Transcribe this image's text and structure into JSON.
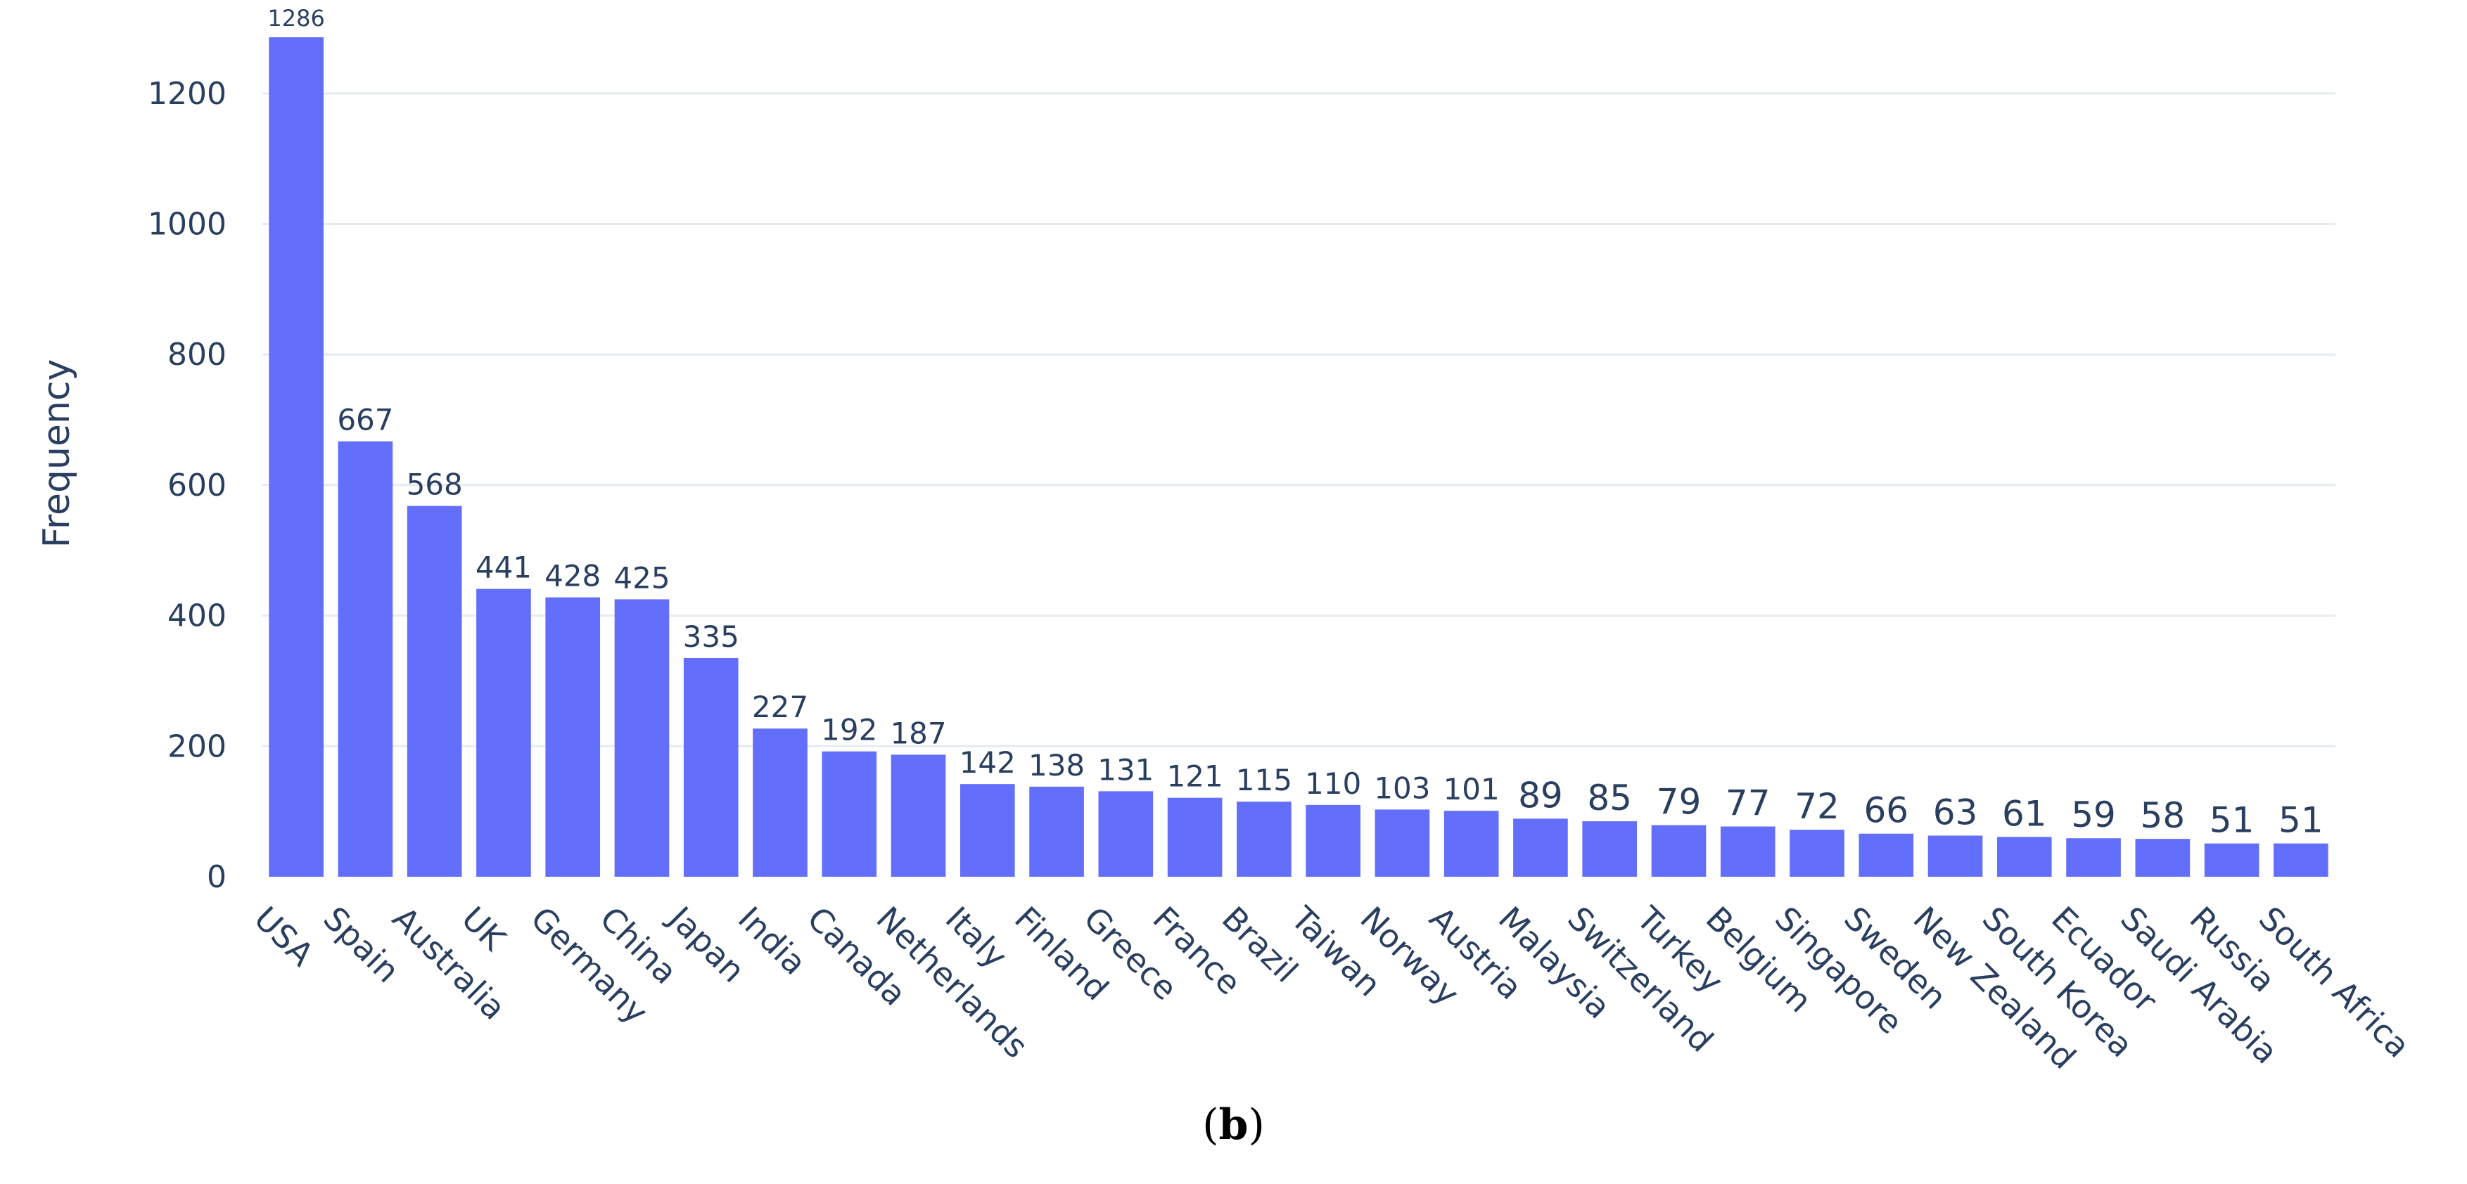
{
  "caption": {
    "open": "(",
    "letter": "b",
    "close": ")"
  },
  "chart_data": {
    "type": "bar",
    "title": "",
    "xlabel": "",
    "ylabel": "Frequency",
    "ylim": [
      0,
      1300
    ],
    "yticks": [
      0,
      200,
      400,
      600,
      800,
      1000,
      1200
    ],
    "grid": true,
    "bar_color": "#636efa",
    "text_color": "#2a3f5f",
    "grid_color": "#e6ebf2",
    "categories": [
      "USA",
      "Spain",
      "Australia",
      "UK",
      "Germany",
      "China",
      "Japan",
      "India",
      "Canada",
      "Netherlands",
      "Italy",
      "Finland",
      "Greece",
      "France",
      "Brazil",
      "Taiwan",
      "Norway",
      "Austria",
      "Malaysia",
      "Switzerland",
      "Turkey",
      "Belgium",
      "Singapore",
      "Sweden",
      "New Zealand",
      "South Korea",
      "Ecuador",
      "Saudi Arabia",
      "Russia",
      "South Africa"
    ],
    "values": [
      1286,
      667,
      568,
      441,
      428,
      425,
      335,
      227,
      192,
      187,
      142,
      138,
      131,
      121,
      115,
      110,
      103,
      101,
      89,
      85,
      79,
      77,
      72,
      66,
      63,
      61,
      59,
      58,
      51,
      51
    ],
    "value_labels": [
      "1286",
      "667",
      "568",
      "441",
      "428",
      "425",
      "335",
      "227",
      "192",
      "187",
      "142",
      "138",
      "131",
      "121",
      "115",
      "110",
      "103",
      "101",
      "89",
      "85",
      "79",
      "77",
      "72",
      "66",
      "63",
      "61",
      "59",
      "58",
      "51",
      "51"
    ]
  }
}
